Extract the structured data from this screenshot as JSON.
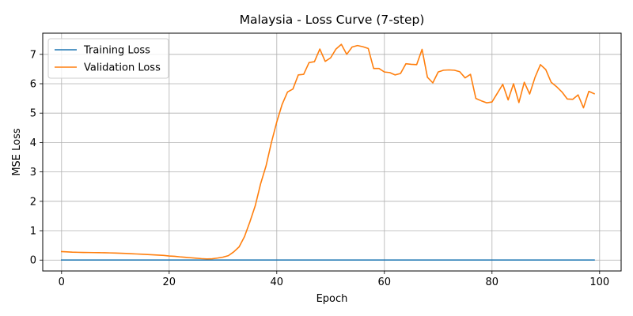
{
  "chart_data": {
    "type": "line",
    "title": "Malaysia - Loss Curve (7-step)",
    "xlabel": "Epoch",
    "ylabel": "MSE Loss",
    "xlim": [
      -3.5,
      104
    ],
    "ylim": [
      -0.37,
      7.72
    ],
    "xticks": [
      0,
      20,
      40,
      60,
      80,
      100
    ],
    "yticks": [
      0,
      1,
      2,
      3,
      4,
      5,
      6,
      7
    ],
    "grid": true,
    "legend_position": "upper-left",
    "x": [
      0,
      1,
      2,
      3,
      4,
      5,
      6,
      7,
      8,
      9,
      10,
      11,
      12,
      13,
      14,
      15,
      16,
      17,
      18,
      19,
      20,
      21,
      22,
      23,
      24,
      25,
      26,
      27,
      28,
      29,
      30,
      31,
      32,
      33,
      34,
      35,
      36,
      37,
      38,
      39,
      40,
      41,
      42,
      43,
      44,
      45,
      46,
      47,
      48,
      49,
      50,
      51,
      52,
      53,
      54,
      55,
      56,
      57,
      58,
      59,
      60,
      61,
      62,
      63,
      64,
      65,
      66,
      67,
      68,
      69,
      70,
      71,
      72,
      73,
      74,
      75,
      76,
      77,
      78,
      79,
      80,
      81,
      82,
      83,
      84,
      85,
      86,
      87,
      88,
      89,
      90,
      91,
      92,
      93,
      94,
      95,
      96,
      97,
      98,
      99
    ],
    "series": [
      {
        "name": "Training Loss",
        "color": "#1f77b4",
        "values": [
          0.003,
          0.003,
          0.003,
          0.003,
          0.003,
          0.003,
          0.003,
          0.003,
          0.003,
          0.003,
          0.003,
          0.003,
          0.003,
          0.003,
          0.003,
          0.003,
          0.003,
          0.003,
          0.003,
          0.003,
          0.003,
          0.003,
          0.003,
          0.003,
          0.003,
          0.003,
          0.003,
          0.003,
          0.003,
          0.003,
          0.003,
          0.003,
          0.003,
          0.003,
          0.003,
          0.003,
          0.003,
          0.003,
          0.003,
          0.003,
          0.003,
          0.003,
          0.003,
          0.003,
          0.003,
          0.003,
          0.003,
          0.003,
          0.003,
          0.003,
          0.003,
          0.003,
          0.003,
          0.003,
          0.003,
          0.003,
          0.003,
          0.003,
          0.003,
          0.003,
          0.003,
          0.003,
          0.003,
          0.003,
          0.003,
          0.003,
          0.003,
          0.003,
          0.003,
          0.003,
          0.003,
          0.003,
          0.003,
          0.003,
          0.003,
          0.003,
          0.003,
          0.003,
          0.003,
          0.003,
          0.003,
          0.003,
          0.003,
          0.003,
          0.003,
          0.003,
          0.003,
          0.003,
          0.003,
          0.003,
          0.003,
          0.003,
          0.003,
          0.003,
          0.003,
          0.003,
          0.003,
          0.003,
          0.003,
          0.003
        ]
      },
      {
        "name": "Validation Loss",
        "color": "#ff7f0e",
        "values": [
          0.29,
          0.28,
          0.27,
          0.265,
          0.26,
          0.258,
          0.255,
          0.252,
          0.25,
          0.245,
          0.24,
          0.232,
          0.225,
          0.215,
          0.208,
          0.2,
          0.19,
          0.18,
          0.17,
          0.16,
          0.14,
          0.13,
          0.11,
          0.095,
          0.08,
          0.065,
          0.05,
          0.04,
          0.045,
          0.07,
          0.1,
          0.15,
          0.28,
          0.45,
          0.8,
          1.3,
          1.85,
          2.6,
          3.2,
          4.0,
          4.7,
          5.3,
          5.72,
          5.82,
          6.3,
          6.32,
          6.72,
          6.75,
          7.18,
          6.76,
          6.88,
          7.18,
          7.34,
          7.0,
          7.25,
          7.3,
          7.26,
          7.2,
          6.52,
          6.52,
          6.4,
          6.38,
          6.3,
          6.35,
          6.68,
          6.66,
          6.65,
          7.17,
          6.22,
          6.03,
          6.4,
          6.46,
          6.47,
          6.46,
          6.41,
          6.2,
          6.32,
          5.5,
          5.42,
          5.35,
          5.38,
          5.68,
          5.98,
          5.45,
          6.0,
          5.36,
          6.05,
          5.65,
          6.22,
          6.65,
          6.48,
          6.05,
          5.9,
          5.72,
          5.48,
          5.47,
          5.62,
          5.18,
          5.74,
          5.66
        ]
      }
    ]
  }
}
